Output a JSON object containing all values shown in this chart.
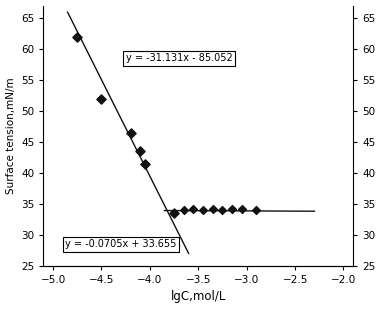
{
  "scatter_decreasing_x": [
    -4.75,
    -4.5,
    -4.2,
    -4.1,
    -4.05,
    -3.75
  ],
  "scatter_decreasing_y": [
    62.0,
    52.0,
    46.5,
    43.5,
    41.5,
    33.5
  ],
  "scatter_flat_x": [
    -3.65,
    -3.55,
    -3.45,
    -3.35,
    -3.25,
    -3.15,
    -3.05,
    -2.9
  ],
  "scatter_flat_y": [
    34.0,
    34.1,
    34.0,
    34.1,
    34.0,
    34.1,
    34.2,
    34.0
  ],
  "line1_x": [
    -4.85,
    -3.6
  ],
  "line1_y_func": {
    "slope": -31.131,
    "intercept": -85.052
  },
  "line2_x": [
    -3.85,
    -2.3
  ],
  "line2_y_func": {
    "slope": -0.0705,
    "intercept": 33.655
  },
  "eq1_text": "y = -31.131x - 85.052",
  "eq2_text": "y = -0.0705x + 33.655",
  "eq1_x": -3.7,
  "eq1_y": 58.5,
  "eq2_x": -4.3,
  "eq2_y": 28.5,
  "xlabel": "lgC,mol/L",
  "ylabel": "Surface tension,mN/m",
  "xlim": [
    -5.1,
    -1.9
  ],
  "ylim": [
    25,
    67
  ],
  "xticks": [
    -5,
    -4.5,
    -4,
    -3.5,
    -3,
    -2.5,
    -2
  ],
  "yticks": [
    25,
    30,
    35,
    40,
    45,
    50,
    55,
    60,
    65
  ],
  "bg_color": "#ffffff",
  "marker_color": "#111111",
  "line_color": "#111111",
  "marker_size_dec": 22,
  "marker_size_flat": 16
}
